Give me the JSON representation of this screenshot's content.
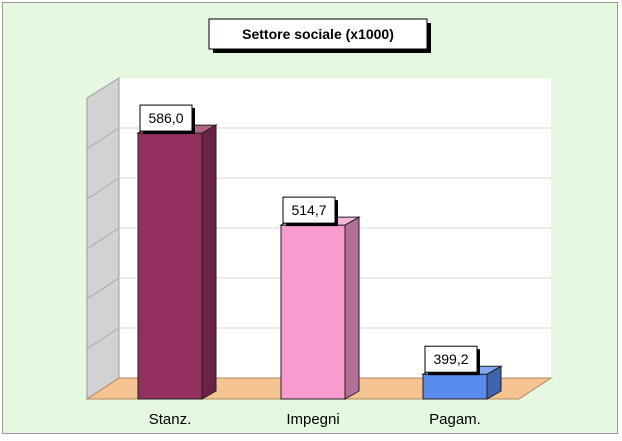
{
  "chart_data": {
    "type": "bar",
    "title": "Settore sociale (x1000)",
    "categories": [
      "Stanz.",
      "Impegni",
      "Pagam."
    ],
    "values": [
      586.0,
      514.7,
      399.2
    ],
    "value_labels": [
      "586,0",
      "514,7",
      "399,2"
    ],
    "colors": [
      "#943060",
      "#f89cd0",
      "#5a8cf0"
    ],
    "ylim": [
      380,
      600
    ],
    "grid": true,
    "legend": "none",
    "style": "3d"
  },
  "background_color": "#e4f9e0",
  "floor_color": "#f6c493"
}
